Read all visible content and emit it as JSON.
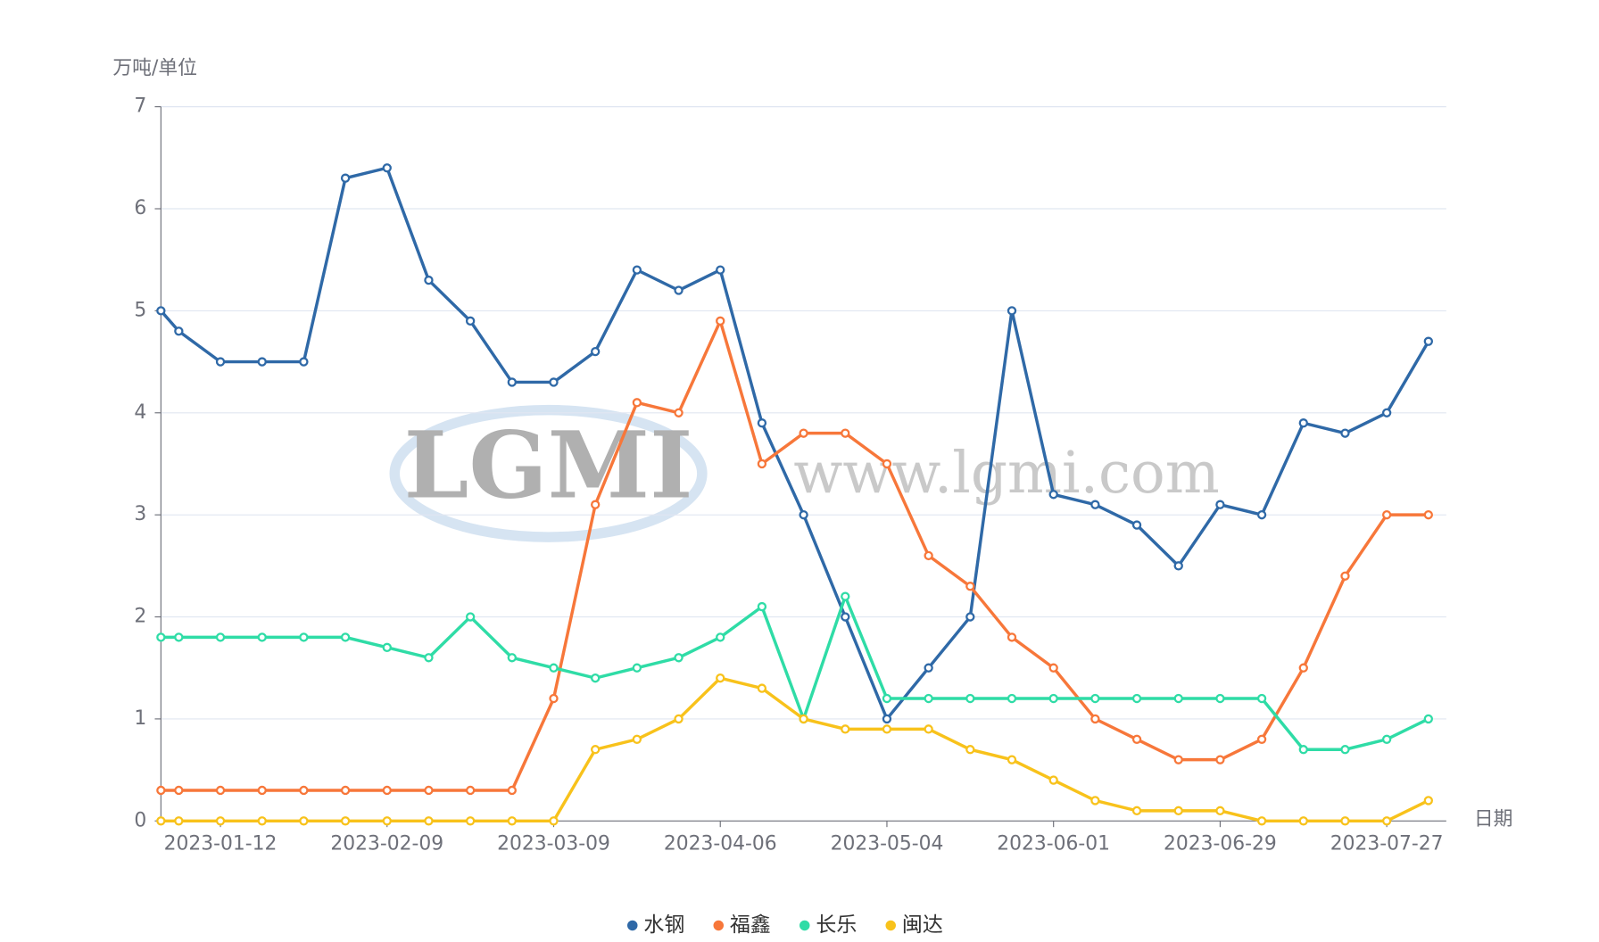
{
  "chart_data": {
    "type": "line",
    "y_label": "万吨/单位",
    "x_label": "日期",
    "watermark_logo": "LGMI",
    "watermark_url": "www.lgmi.com",
    "x": [
      "2023-01-02",
      "2023-01-05",
      "2023-01-12",
      "2023-01-19",
      "2023-01-26",
      "2023-02-02",
      "2023-02-09",
      "2023-02-16",
      "2023-02-23",
      "2023-03-02",
      "2023-03-09",
      "2023-03-16",
      "2023-03-23",
      "2023-03-30",
      "2023-04-06",
      "2023-04-13",
      "2023-04-20",
      "2023-04-27",
      "2023-05-04",
      "2023-05-11",
      "2023-05-18",
      "2023-05-25",
      "2023-06-01",
      "2023-06-08",
      "2023-06-15",
      "2023-06-22",
      "2023-06-29",
      "2023-07-06",
      "2023-07-13",
      "2023-07-20",
      "2023-07-27",
      "2023-08-03"
    ],
    "series": [
      {
        "name": "水钢",
        "color": "#2f69a7",
        "values": [
          5.0,
          4.8,
          4.5,
          4.5,
          4.5,
          6.3,
          6.4,
          5.3,
          4.9,
          4.3,
          4.3,
          4.6,
          5.4,
          5.2,
          5.4,
          3.9,
          3.0,
          2.0,
          1.0,
          1.5,
          2.0,
          5.0,
          3.2,
          3.1,
          2.9,
          2.5,
          3.1,
          3.0,
          3.9,
          3.8,
          4.0,
          4.7
        ]
      },
      {
        "name": "福鑫",
        "color": "#f7773a",
        "values": [
          0.3,
          0.3,
          0.3,
          0.3,
          0.3,
          0.3,
          0.3,
          0.3,
          0.3,
          0.3,
          1.2,
          3.1,
          4.1,
          4.0,
          4.9,
          3.5,
          3.8,
          3.8,
          3.5,
          2.6,
          2.3,
          1.8,
          1.5,
          1.0,
          0.8,
          0.6,
          0.6,
          0.8,
          1.5,
          2.4,
          3.0,
          3.0
        ]
      },
      {
        "name": "长乐",
        "color": "#2fdca6",
        "values": [
          1.8,
          1.8,
          1.8,
          1.8,
          1.8,
          1.8,
          1.7,
          1.6,
          2.0,
          1.6,
          1.5,
          1.4,
          1.5,
          1.6,
          1.8,
          2.1,
          1.0,
          2.2,
          1.2,
          1.2,
          1.2,
          1.2,
          1.2,
          1.2,
          1.2,
          1.2,
          1.2,
          1.2,
          0.7,
          0.7,
          0.8,
          1.0
        ]
      },
      {
        "name": "闽达",
        "color": "#f8c21b",
        "values": [
          0,
          0,
          0,
          0,
          0,
          0,
          0,
          0,
          0,
          0,
          0,
          0.7,
          0.8,
          1.0,
          1.4,
          1.3,
          1.0,
          0.9,
          0.9,
          0.9,
          0.7,
          0.6,
          0.4,
          0.2,
          0.1,
          0.1,
          0.1,
          0,
          0,
          0,
          0,
          0.2
        ]
      }
    ],
    "xlim": [
      "2023-01-02",
      "2023-08-06"
    ],
    "xticks": [
      "2023-01-12",
      "2023-02-09",
      "2023-03-09",
      "2023-04-06",
      "2023-05-04",
      "2023-06-01",
      "2023-06-29",
      "2023-07-27"
    ],
    "ylim": [
      0,
      7
    ],
    "yticks": [
      0,
      1,
      2,
      3,
      4,
      5,
      6,
      7
    ],
    "grid": true,
    "legend": "bottom"
  }
}
